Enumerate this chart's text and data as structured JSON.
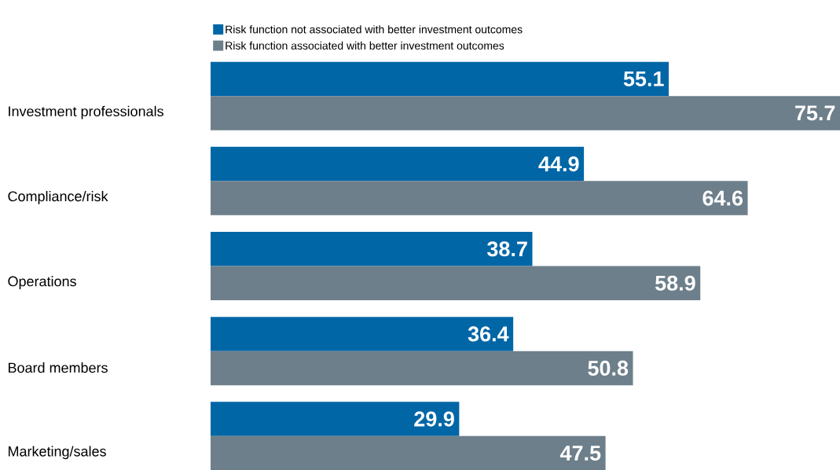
{
  "chart_data": {
    "type": "bar",
    "orientation": "horizontal",
    "data_labels": true,
    "legend": "top left",
    "categories": [
      "Investment professionals",
      "Compliance/risk",
      "Operations",
      "Board members",
      "Marketing/sales"
    ],
    "series": [
      {
        "name": "Risk function not associated with better investment outcomes",
        "color": "#0066a6",
        "values": [
          55.1,
          44.9,
          38.7,
          36.4,
          29.9
        ]
      },
      {
        "name": "Risk function associated with better investment outcomes",
        "color": "#6d7f8a",
        "values": [
          75.7,
          64.6,
          58.9,
          50.8,
          47.5
        ]
      }
    ]
  }
}
